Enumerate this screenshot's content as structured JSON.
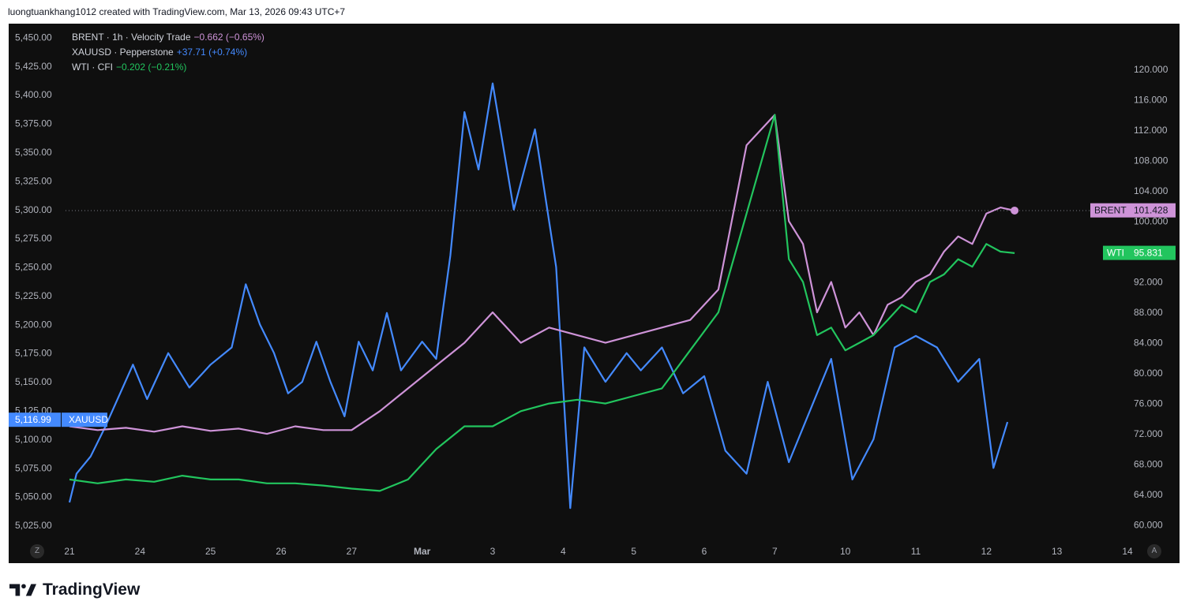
{
  "header": {
    "text": "luongtuankhang1012 created with TradingView.com, Mar 13, 2026 09:43 UTC+7"
  },
  "legend": [
    {
      "name": "BRENT · 1h · Velocity Trade",
      "change": "−0.662 (−0.65%)",
      "color": "#ce93d8"
    },
    {
      "name": "XAUUSD · Pepperstone",
      "change": "+37.71 (+0.74%)",
      "color": "#448aff"
    },
    {
      "name": "WTI · CFI",
      "change": "−0.202 (−0.21%)",
      "color": "#22c55e"
    }
  ],
  "corner_left": "Z",
  "corner_right": "A",
  "brand": "TradingView",
  "chart_data": {
    "type": "line",
    "x_ticks": [
      "21",
      "24",
      "25",
      "26",
      "27",
      "Mar",
      "3",
      "4",
      "5",
      "6",
      "7",
      "10",
      "11",
      "12",
      "13",
      "14"
    ],
    "left_axis": {
      "series": "XAUUSD",
      "ylim": [
        5012,
        5462
      ],
      "ticks": [
        "5,450.00",
        "5,425.00",
        "5,400.00",
        "5,375.00",
        "5,350.00",
        "5,325.00",
        "5,300.00",
        "5,275.00",
        "5,250.00",
        "5,225.00",
        "5,200.00",
        "5,175.00",
        "5,150.00",
        "5,125.00",
        "5,100.00",
        "5,075.00",
        "5,050.00",
        "5,025.00"
      ]
    },
    "right_axis": {
      "series": [
        "BRENT",
        "WTI"
      ],
      "ylim": [
        58,
        126
      ],
      "ticks": [
        "120.000",
        "116.000",
        "112.000",
        "108.000",
        "104.000",
        "100.000",
        "96.000",
        "92.000",
        "88.000",
        "84.000",
        "80.000",
        "76.000",
        "72.000",
        "68.000",
        "64.000",
        "60.000"
      ]
    },
    "price_labels": [
      {
        "series": "XAUUSD",
        "name": "XAUUSD",
        "value": "5,116.99",
        "axis": "left",
        "color": "#448aff"
      },
      {
        "series": "BRENT",
        "name": "BRENT",
        "value": "101.428",
        "axis": "right",
        "color": "#ce93d8"
      },
      {
        "series": "WTI",
        "name": "WTI",
        "value": "95.831",
        "axis": "right",
        "color": "#22c55e"
      }
    ],
    "series": [
      {
        "name": "XAUUSD",
        "axis": "left",
        "color": "#448aff",
        "x": [
          0,
          0.1,
          0.3,
          0.5,
          0.9,
          1.1,
          1.4,
          1.7,
          2.0,
          2.3,
          2.5,
          2.7,
          2.9,
          3.1,
          3.3,
          3.5,
          3.7,
          3.9,
          4.1,
          4.3,
          4.5,
          4.7,
          5.0,
          5.2,
          5.4,
          5.6,
          5.8,
          6.0,
          6.3,
          6.6,
          6.9,
          7.1,
          7.3,
          7.6,
          7.9,
          8.1,
          8.4,
          8.7,
          9.0,
          9.3,
          9.6,
          9.9,
          10.2,
          10.5,
          10.8,
          11.1,
          11.4,
          11.7,
          12.0,
          12.3,
          12.6,
          12.9,
          13.1,
          13.3
        ],
        "y": [
          5045,
          5070,
          5085,
          5110,
          5165,
          5135,
          5175,
          5145,
          5165,
          5180,
          5235,
          5200,
          5175,
          5140,
          5150,
          5185,
          5150,
          5120,
          5185,
          5160,
          5210,
          5160,
          5185,
          5170,
          5260,
          5385,
          5335,
          5410,
          5300,
          5370,
          5250,
          5040,
          5180,
          5150,
          5175,
          5160,
          5180,
          5140,
          5155,
          5090,
          5070,
          5150,
          5080,
          5125,
          5170,
          5065,
          5100,
          5180,
          5190,
          5180,
          5150,
          5170,
          5075,
          5115
        ]
      },
      {
        "name": "BRENT",
        "axis": "right",
        "color": "#ce93d8",
        "x": [
          0,
          0.4,
          0.8,
          1.2,
          1.6,
          2.0,
          2.4,
          2.8,
          3.2,
          3.6,
          4.0,
          4.4,
          4.8,
          5.2,
          5.6,
          6.0,
          6.4,
          6.8,
          7.2,
          7.6,
          8.0,
          8.4,
          8.8,
          9.2,
          9.6,
          10.0,
          10.2,
          10.4,
          10.6,
          10.8,
          11.0,
          11.2,
          11.4,
          11.6,
          11.8,
          12.0,
          12.2,
          12.4,
          12.6,
          12.8,
          13.0,
          13.2,
          13.4
        ],
        "y": [
          73,
          72.5,
          72.8,
          72.3,
          73,
          72.4,
          72.7,
          72,
          73,
          72.5,
          72.5,
          75,
          78,
          81,
          84,
          88,
          84,
          86,
          85,
          84,
          85,
          86,
          87,
          91,
          110,
          114,
          100,
          97,
          88,
          92,
          86,
          88,
          85,
          89,
          90,
          92,
          93,
          96,
          98,
          97,
          101,
          101.8,
          101.4
        ]
      },
      {
        "name": "WTI",
        "axis": "right",
        "color": "#22c55e",
        "x": [
          0,
          0.4,
          0.8,
          1.2,
          1.6,
          2.0,
          2.4,
          2.8,
          3.2,
          3.6,
          4.0,
          4.4,
          4.8,
          5.2,
          5.6,
          6.0,
          6.4,
          6.8,
          7.2,
          7.6,
          8.0,
          8.4,
          8.8,
          9.2,
          9.6,
          10.0,
          10.2,
          10.4,
          10.6,
          10.8,
          11.0,
          11.2,
          11.4,
          11.6,
          11.8,
          12.0,
          12.2,
          12.4,
          12.6,
          12.8,
          13.0,
          13.2,
          13.4
        ],
        "y": [
          66,
          65.5,
          66,
          65.7,
          66.5,
          66,
          66,
          65.5,
          65.5,
          65.2,
          64.8,
          64.5,
          66,
          70,
          73,
          73,
          75,
          76,
          76.5,
          76,
          77,
          78,
          83,
          88,
          101,
          114,
          95,
          92,
          85,
          86,
          83,
          84,
          85,
          87,
          89,
          88,
          92,
          93,
          95,
          94,
          97,
          96,
          95.8
        ]
      }
    ]
  }
}
